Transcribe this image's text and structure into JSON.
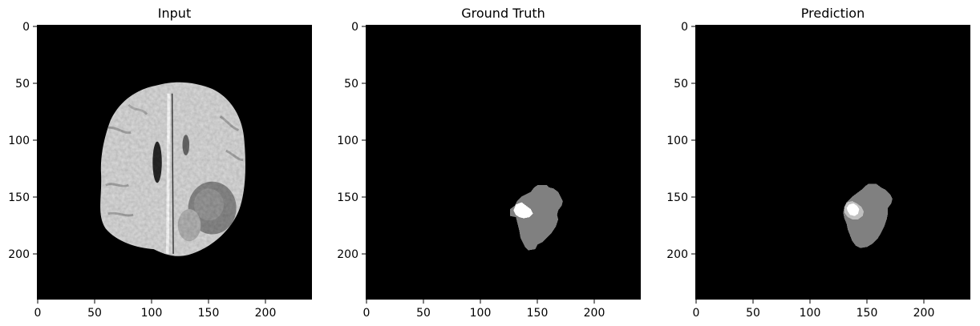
{
  "figure": {
    "panels": [
      {
        "id": "input",
        "title": "Input",
        "x_ticks": [
          "0",
          "50",
          "100",
          "150",
          "200"
        ],
        "y_ticks": [
          "0",
          "50",
          "100",
          "150",
          "200"
        ]
      },
      {
        "id": "ground_truth",
        "title": "Ground Truth",
        "x_ticks": [
          "0",
          "50",
          "100",
          "150",
          "200"
        ],
        "y_ticks": [
          "0",
          "50",
          "100",
          "150",
          "200"
        ]
      },
      {
        "id": "prediction",
        "title": "Prediction",
        "x_ticks": [
          "0",
          "50",
          "100",
          "150",
          "200"
        ],
        "y_ticks": [
          "0",
          "50",
          "100",
          "150",
          "200"
        ]
      }
    ],
    "colors": {
      "background": "#000000",
      "tissue": "#d9d9d9",
      "edema": "#808080",
      "core": "#ffffff",
      "core_faint": "#c0c0c0"
    }
  }
}
